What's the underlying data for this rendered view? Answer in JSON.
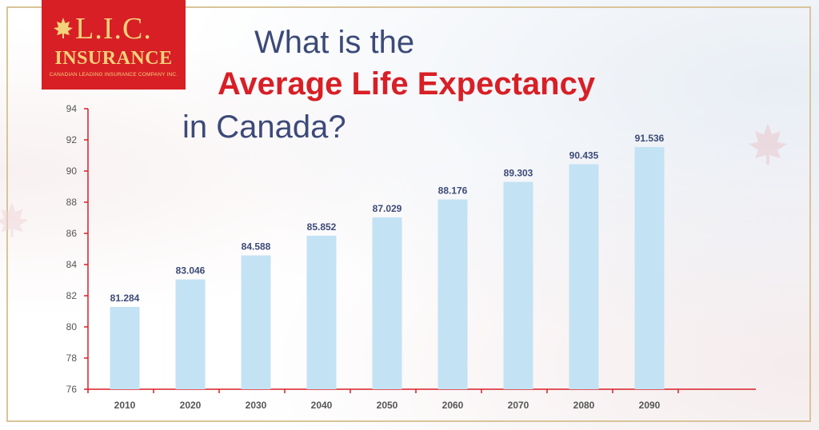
{
  "logo": {
    "line1": "L.I.C.",
    "line2": "INSURANCE",
    "line3": "CANADIAN LEADING INSURANCE COMPANY INC."
  },
  "title": {
    "line1": "What is the",
    "line2": "Average Life Expectancy",
    "line3": "in Canada?"
  },
  "colors": {
    "accent_red": "#d81f26",
    "title_blue": "#3c4a78",
    "bar_fill": "#c3e2f4",
    "axis_red": "#d81f26",
    "label_gray": "#555555"
  },
  "chart_data": {
    "type": "bar",
    "categories": [
      "2010",
      "2020",
      "2030",
      "2040",
      "2050",
      "2060",
      "2070",
      "2080",
      "2090"
    ],
    "values": [
      81.284,
      83.046,
      84.588,
      85.852,
      87.029,
      88.176,
      89.303,
      90.435,
      91.536
    ],
    "value_labels": [
      "81.284",
      "83.046",
      "84.588",
      "85.852",
      "87.029",
      "88.176",
      "89.303",
      "90.435",
      "91.536"
    ],
    "yticks": [
      "76",
      "78",
      "80",
      "82",
      "84",
      "86",
      "88",
      "90",
      "92",
      "94"
    ],
    "ylim": [
      76,
      94
    ],
    "grid": false,
    "legend": "none"
  }
}
